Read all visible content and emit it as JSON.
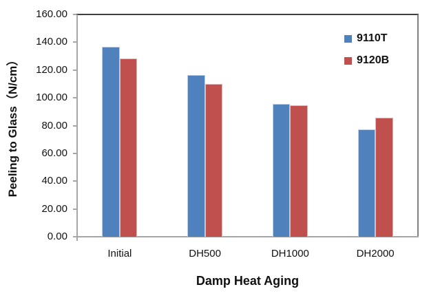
{
  "chart_data": {
    "type": "bar",
    "title": "",
    "xlabel": "Damp Heat Aging",
    "ylabel": "Peeling to Glass（N/cm）",
    "categories": [
      "Initial",
      "DH500",
      "DH1000",
      "DH2000"
    ],
    "series": [
      {
        "name": "9110T",
        "color": "#4F81BD",
        "edge_color": "#BCCFE8",
        "values": [
          136.5,
          116.5,
          95.5,
          77.5
        ]
      },
      {
        "name": "9120B",
        "color": "#C0504D",
        "edge_color": "#E2B6B5",
        "values": [
          128.5,
          110.0,
          94.5,
          85.5
        ]
      }
    ],
    "ylim": [
      0,
      160
    ],
    "ytick_step": 20,
    "ytick_labels": [
      "160.00",
      "140.00",
      "120.00",
      "100.00",
      "80.00",
      "60.00",
      "40.00",
      "20.00",
      "0.00"
    ],
    "grid": false,
    "legend_position": "top-right-inside",
    "axis_color": "#A6A6A6",
    "plot_border_top_color": "#3F3F3F",
    "plot_border_right_color": "#7F7F7F",
    "text_color": "#111111"
  }
}
